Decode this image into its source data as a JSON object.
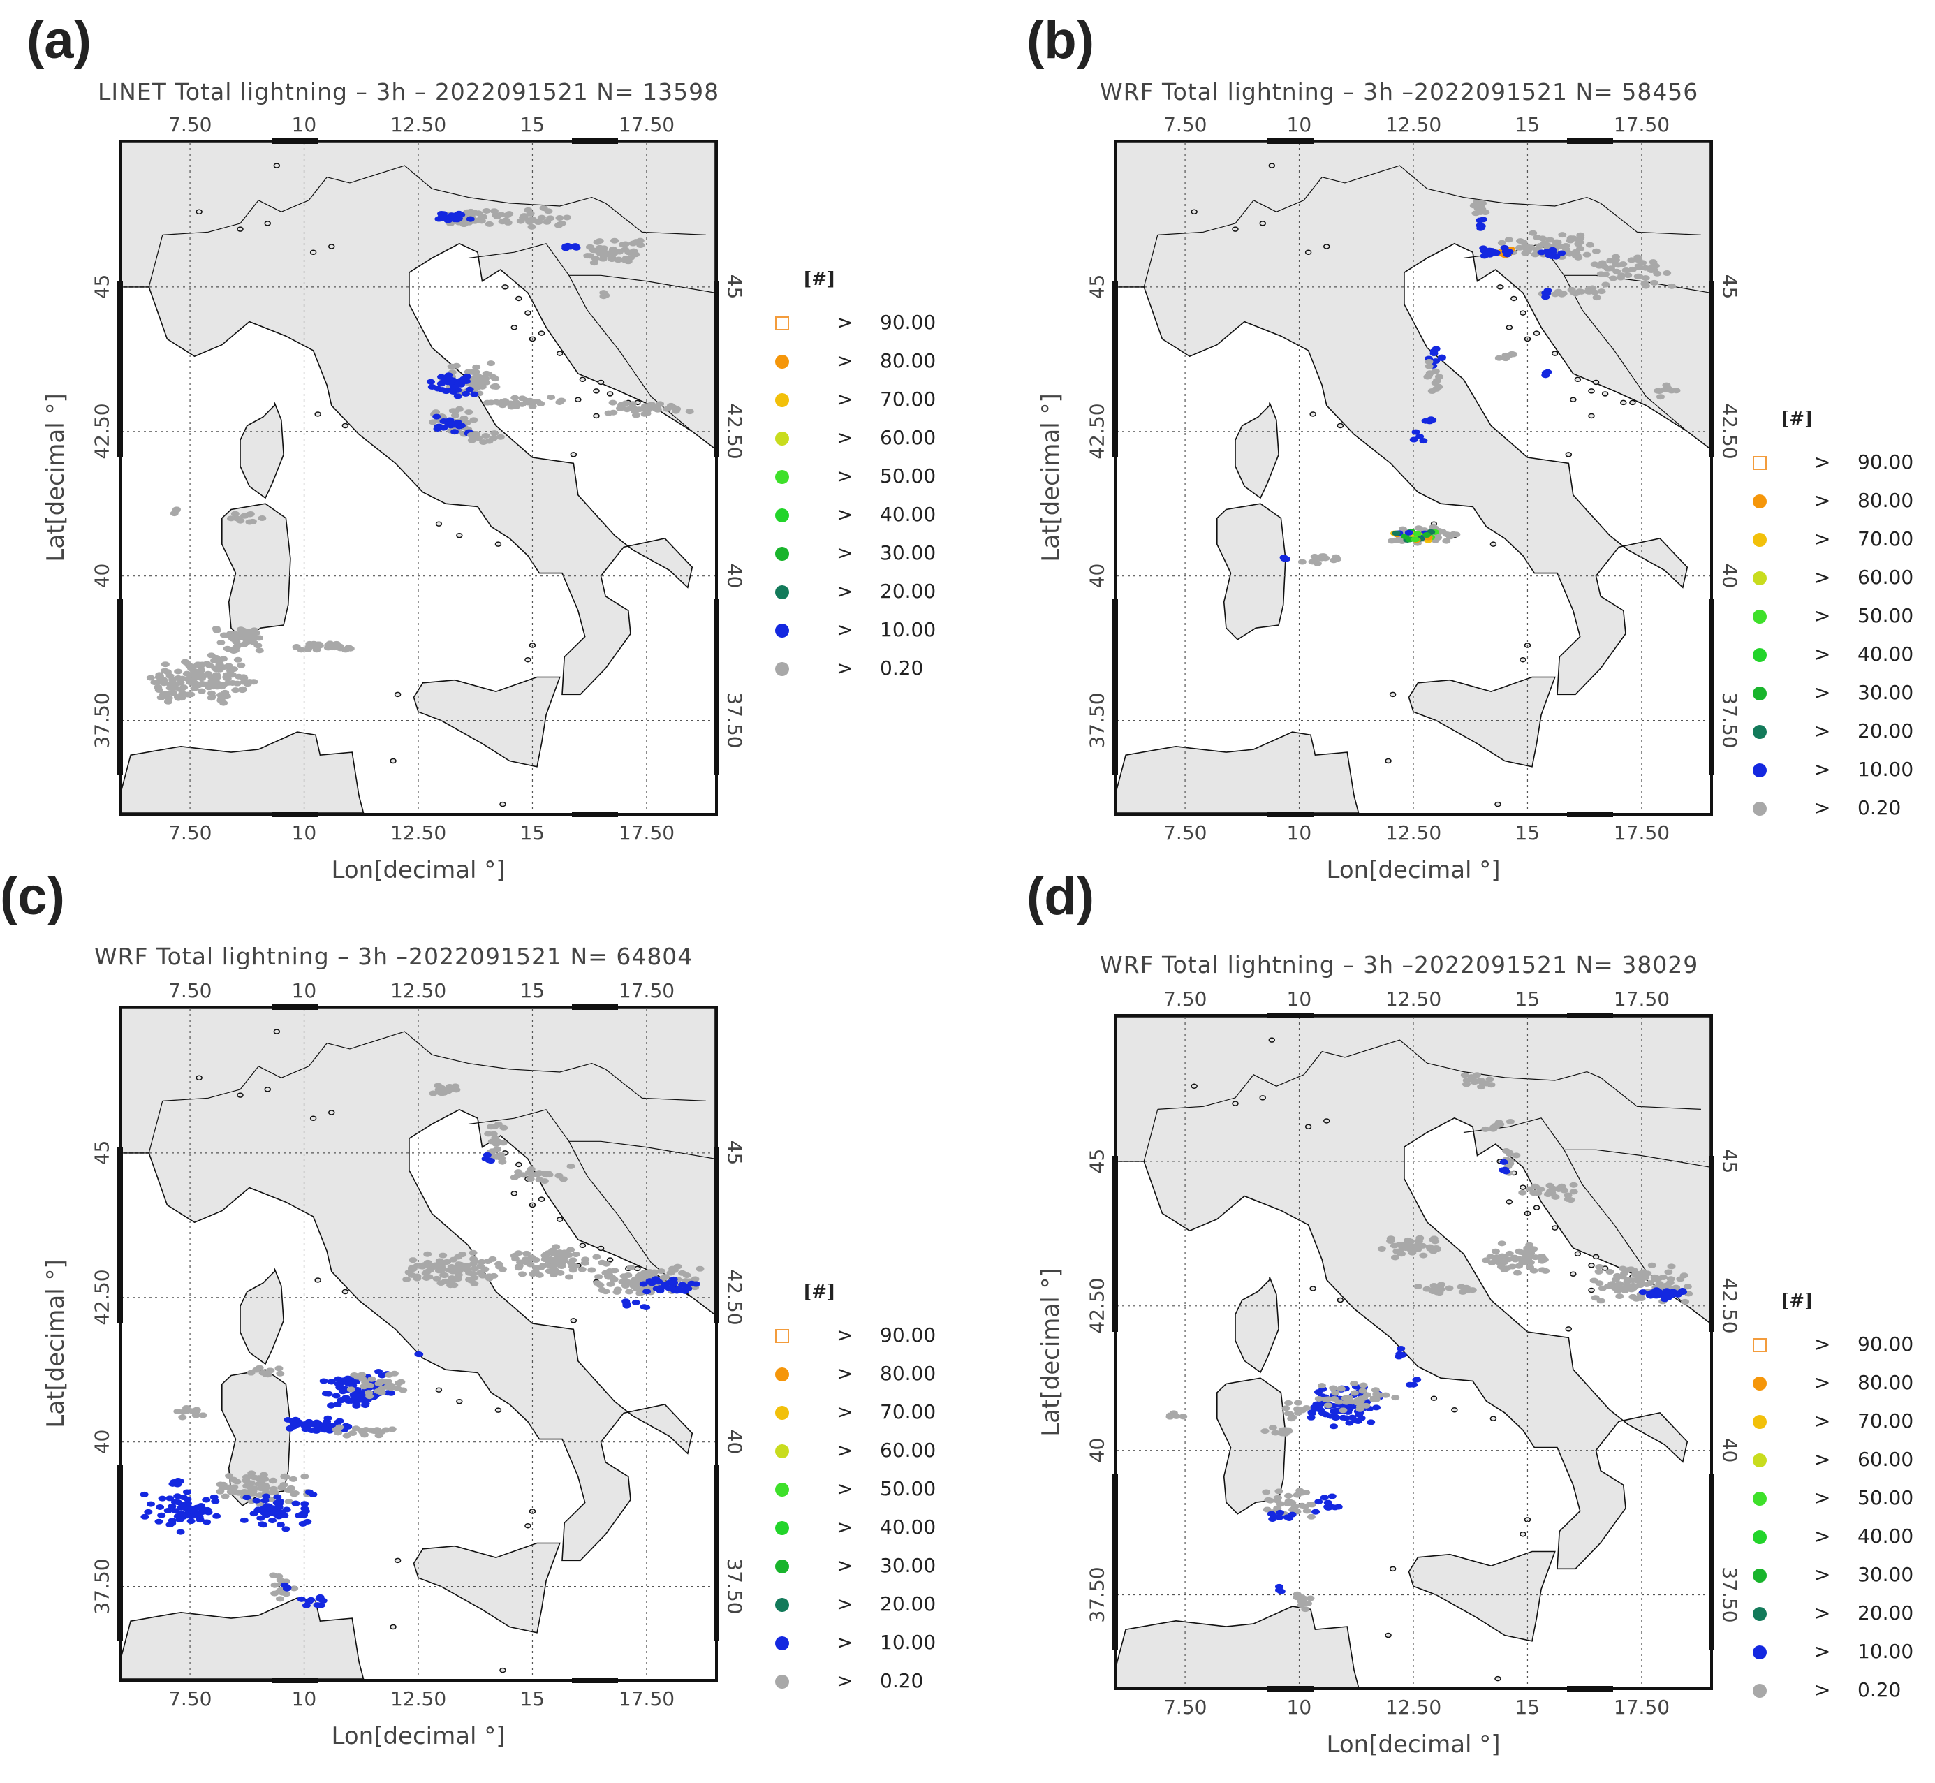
{
  "panels": [
    {
      "letter": "(a)",
      "title": "LINET Total lightning  – 3h  – 2022091521  N=  13598"
    },
    {
      "letter": "(b)",
      "title": "WRF Total lightning  – 3h  –2022091521  N=  58456"
    },
    {
      "letter": "(c)",
      "title": "WRF Total lightning  – 3h  –2022091521  N=  64804"
    },
    {
      "letter": "(d)",
      "title": "WRF Total lightning  – 3h  –2022091521  N=  38029"
    }
  ],
  "axes": {
    "x_label": "Lon[decimal °]",
    "y_label": "Lat[decimal °]",
    "lon_ticks": [
      "7.50",
      "10",
      "12.50",
      "15",
      "17.50"
    ],
    "lat_ticks": [
      "45",
      "42.50",
      "40",
      "37.50"
    ],
    "lon_range": [
      6.0,
      19.0
    ],
    "lat_range": [
      35.9,
      47.5
    ]
  },
  "legend": {
    "unit": "[#]",
    "gt_symbol": ">",
    "entries": [
      {
        "value": "90.00",
        "color": "#f39c3c",
        "marker": "open-square"
      },
      {
        "value": "80.00",
        "color": "#f5960a",
        "marker": "circle"
      },
      {
        "value": "70.00",
        "color": "#f2c00a",
        "marker": "circle"
      },
      {
        "value": "60.00",
        "color": "#c8dc1e",
        "marker": "circle"
      },
      {
        "value": "50.00",
        "color": "#3ee02a",
        "marker": "circle"
      },
      {
        "value": "40.00",
        "color": "#22d42a",
        "marker": "circle"
      },
      {
        "value": "30.00",
        "color": "#19b42c",
        "marker": "circle"
      },
      {
        "value": "20.00",
        "color": "#137a5a",
        "marker": "circle"
      },
      {
        "value": "10.00",
        "color": "#1428e0",
        "marker": "circle"
      },
      {
        "value": "0.20",
        "color": "#a8a8a8",
        "marker": "circle"
      }
    ]
  },
  "colors": {
    "land": "#e6e6e6",
    "sea": "#ffffff",
    "coast": "#111111",
    "grid": "#555555"
  }
}
